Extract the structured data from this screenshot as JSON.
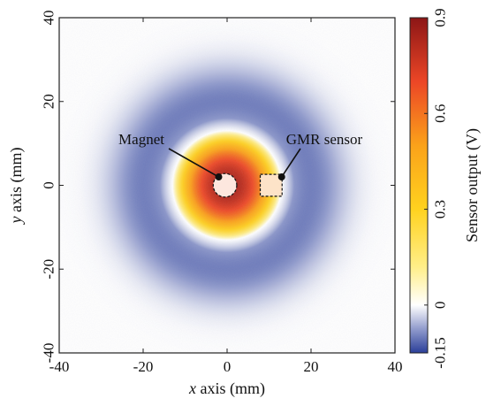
{
  "chart_data": {
    "type": "heatmap",
    "title": "",
    "xaxis": {
      "label_var": "x",
      "label_rest": " axis (mm)",
      "range": [
        -40,
        40
      ],
      "ticks": [
        -40,
        -20,
        0,
        20,
        40
      ]
    },
    "yaxis": {
      "label_var": "y",
      "label_rest": " axis (mm)",
      "range": [
        -40,
        40
      ],
      "ticks": [
        -40,
        -20,
        0,
        20,
        40
      ]
    },
    "colorbar": {
      "label": "Sensor output (V)",
      "range": [
        -0.15,
        0.9
      ],
      "ticks": [
        -0.15,
        0,
        0.3,
        0.6,
        0.9
      ],
      "stops": [
        {
          "value": -0.15,
          "color": "#2b3f99"
        },
        {
          "value": -0.08,
          "color": "#8a95c9"
        },
        {
          "value": 0.0,
          "color": "#ffffff"
        },
        {
          "value": 0.12,
          "color": "#ffee88"
        },
        {
          "value": 0.3,
          "color": "#ffd21f"
        },
        {
          "value": 0.5,
          "color": "#fba21a"
        },
        {
          "value": 0.7,
          "color": "#ec4626"
        },
        {
          "value": 0.9,
          "color": "#8c1616"
        }
      ]
    },
    "field": {
      "center": [
        0,
        0
      ],
      "peak_value": 0.85,
      "zero_crossing_radius_mm": 13,
      "trough_value": -0.1,
      "trough_radius_mm": 20
    },
    "annotations": [
      {
        "label": "Magnet",
        "marker": "circle",
        "center": [
          -0.5,
          0
        ],
        "radius_mm": 2.8,
        "point": [
          -2,
          2
        ]
      },
      {
        "label": "GMR sensor",
        "marker": "square",
        "center": [
          10.5,
          0
        ],
        "half_size_mm": 2.6,
        "point": [
          13,
          2
        ]
      }
    ]
  }
}
